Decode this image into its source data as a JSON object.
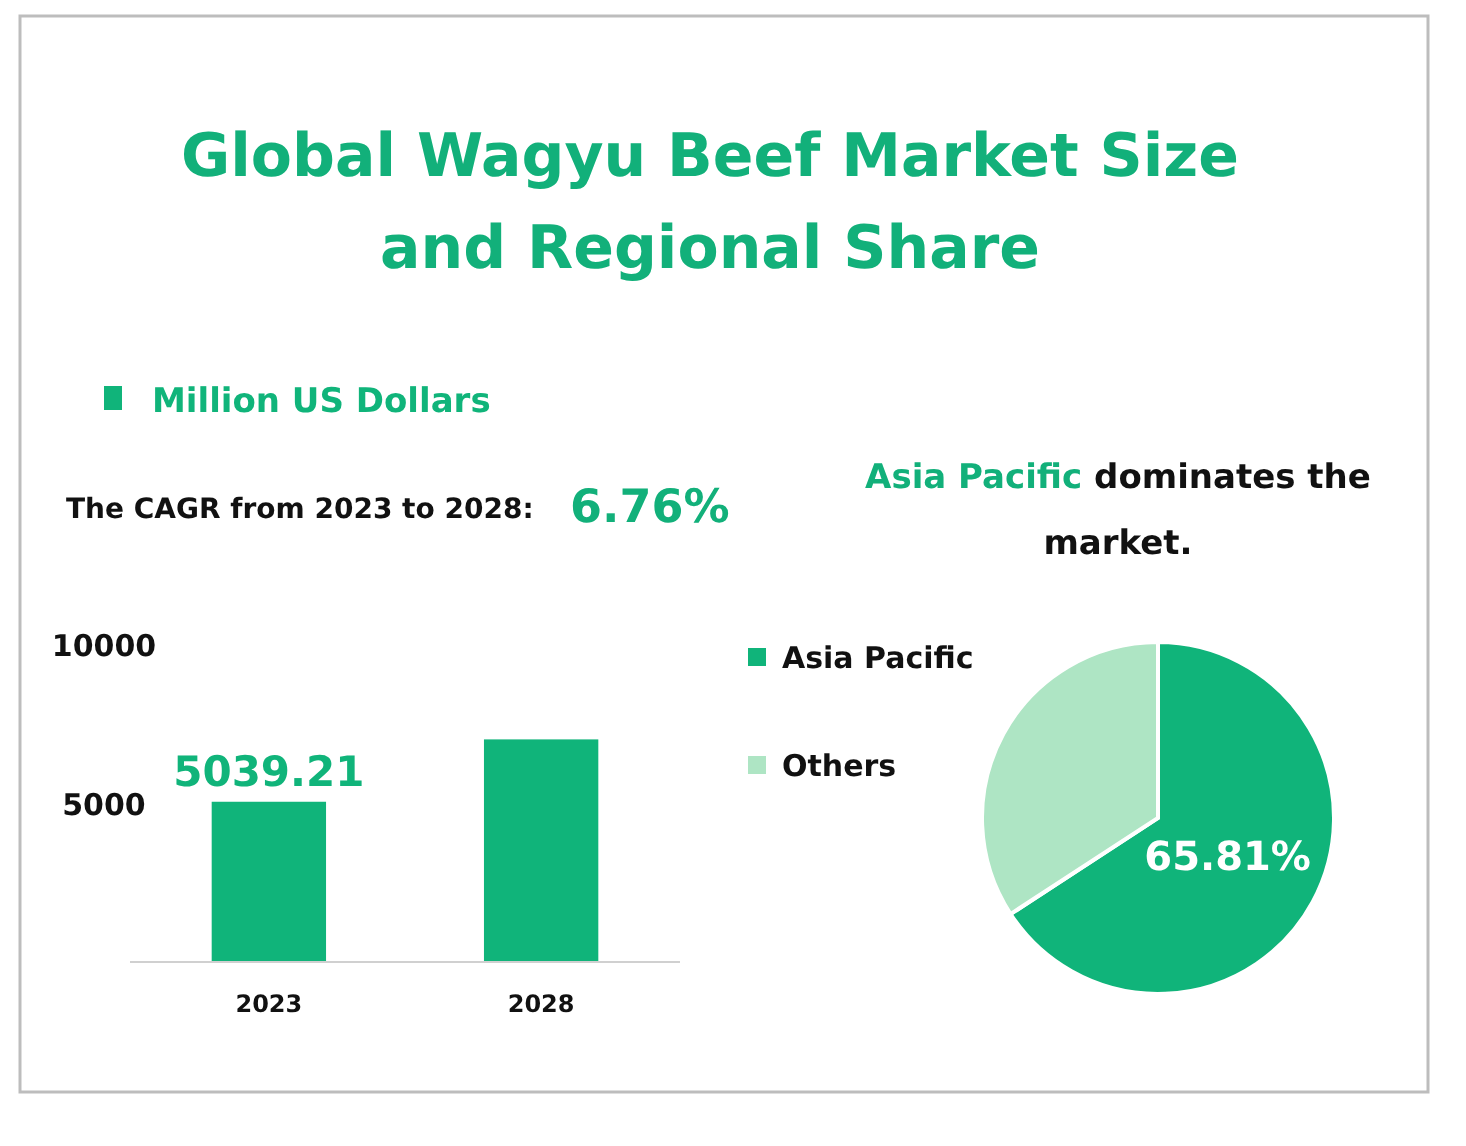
{
  "chart_data": [
    {
      "type": "bar",
      "title": "Global Wagyu Beef Market Size and Regional Share",
      "categories": [
        "2023",
        "2028"
      ],
      "series": [
        {
          "name": "Million US Dollars",
          "color": "#10b47a",
          "values": [
            5039.21,
            7000
          ],
          "value_labels": [
            "5039.21",
            null
          ]
        }
      ],
      "ylim": [
        0,
        10000
      ],
      "yticks": [
        5000,
        10000
      ],
      "grid": false,
      "legend": "top left",
      "annotations": [
        "The CAGR from 2023 to 2028:",
        "6.76%"
      ]
    },
    {
      "type": "pie",
      "title": "Asia Pacific dominates the market.",
      "categories": [
        "Asia Pacific",
        "Others"
      ],
      "values": [
        65.81,
        34.19
      ],
      "colors": [
        "#10b47a",
        "#aee5c4"
      ],
      "value_labels": [
        "65.81%",
        null
      ],
      "legend": "left"
    }
  ]
}
